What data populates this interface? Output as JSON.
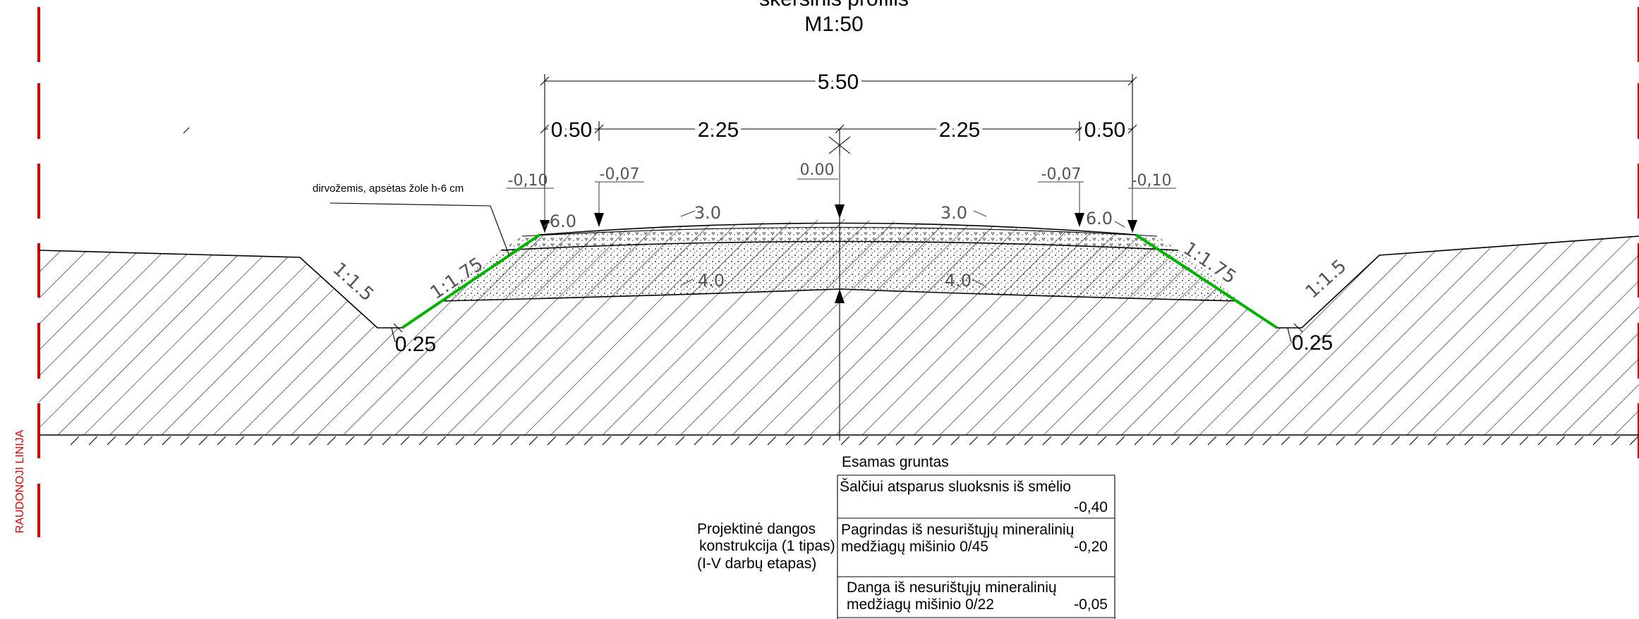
{
  "title": {
    "line1": "skersinis profilis",
    "line2": "M1:50"
  },
  "dimensions": {
    "total": "5.50",
    "left_shoulder": "0.50",
    "left_lane": "2.25",
    "right_lane": "2.25",
    "right_shoulder": "0.50",
    "left_ditch": "0.25",
    "right_ditch": "0.25"
  },
  "elevations": {
    "left_outer": "-0,10",
    "left_inner": "-0,07",
    "center": "0.00",
    "right_inner": "-0,07",
    "right_outer": "-0,10"
  },
  "slopes": {
    "left_shoulder_pct": "6.0",
    "left_lane_pct": "3.0",
    "right_lane_pct": "3.0",
    "right_shoulder_pct": "6.0",
    "left_base_pct": "4.0",
    "right_base_pct": "4.0",
    "left_embankment": "1:1.75",
    "right_embankment": "1:1.75",
    "left_cut": "1:1.5",
    "right_cut": "1:1.5"
  },
  "notes": {
    "topsoil": "dirvožemis, apsėtas žole h-6 cm",
    "red_line": "RAUDONOJI LINIJA"
  },
  "legend": {
    "existing_ground": "Esamas gruntas",
    "title_lines": [
      "Projektinė dangos",
      "konstrukcija (1 tipas)",
      "(I-V darbų etapas)"
    ],
    "layers": [
      {
        "lines": [
          "Šalčiui atsparus sluoksnis iš smėlio"
        ],
        "thickness": "-0,40"
      },
      {
        "lines": [
          "Pagrindas iš nesurištųjų mineralinių",
          "medžiagų mišinio 0/45"
        ],
        "thickness": "-0,20"
      },
      {
        "lines": [
          "Danga iš  nesurištųjų mineralinių",
          "medžiagų mišinio 0/22"
        ],
        "thickness": "-0,05"
      }
    ]
  },
  "colors": {
    "red_line": "#e00000",
    "topsoil_slope": "#00b400"
  }
}
